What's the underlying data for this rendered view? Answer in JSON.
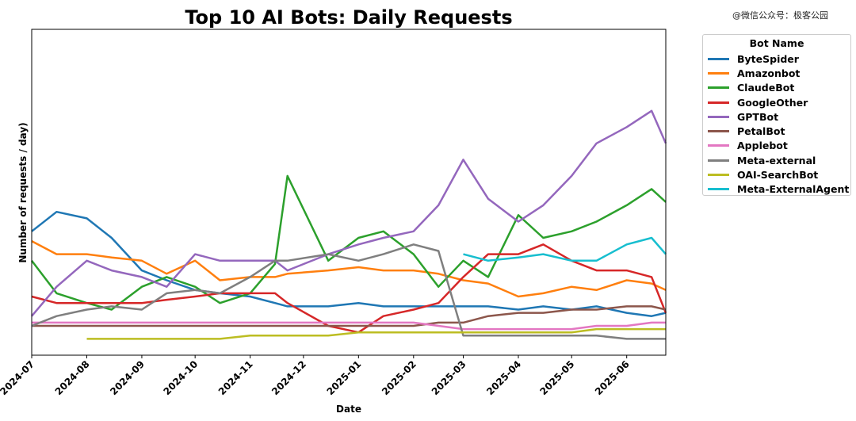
{
  "watermark": "@微信公众号：极客公园",
  "chart_data": {
    "type": "line",
    "title": "Top 10 AI Bots: Daily Requests",
    "xlabel": "Date",
    "ylabel": "Number of requests / day)",
    "xlim": [
      "2024-07-01",
      "2025-06-23"
    ],
    "ylim": [
      0,
      100
    ],
    "y_units": "relative (no y tick labels shown)",
    "grid": false,
    "legend": {
      "title": "Bot Name",
      "placement": "outside-right"
    },
    "x_ticks": [
      "2024-07",
      "2024-08",
      "2024-09",
      "2024-10",
      "2024-11",
      "2024-12",
      "2025-01",
      "2025-02",
      "2025-03",
      "2025-04",
      "2025-05",
      "2025-06"
    ],
    "x": [
      "2024-07-01",
      "2024-07-15",
      "2024-08-01",
      "2024-08-15",
      "2024-09-01",
      "2024-09-15",
      "2024-10-01",
      "2024-10-15",
      "2024-11-01",
      "2024-11-15",
      "2024-11-22",
      "2024-12-15",
      "2025-01-01",
      "2025-01-15",
      "2025-02-01",
      "2025-02-15",
      "2025-03-01",
      "2025-03-15",
      "2025-04-01",
      "2025-04-15",
      "2025-05-01",
      "2025-05-15",
      "2025-06-01",
      "2025-06-15",
      "2025-06-23"
    ],
    "series": [
      {
        "name": "ByteSpider",
        "color": "#1f77b4",
        "values": [
          38,
          44,
          42,
          36,
          26,
          23,
          20,
          19,
          18,
          16,
          15,
          15,
          16,
          15,
          15,
          15,
          15,
          15,
          14,
          15,
          14,
          15,
          13,
          12,
          13
        ]
      },
      {
        "name": "Amazonbot",
        "color": "#ff7f0e",
        "values": [
          35,
          31,
          31,
          30,
          29,
          25,
          29,
          23,
          24,
          24,
          25,
          26,
          27,
          26,
          26,
          25,
          23,
          22,
          18,
          19,
          21,
          20,
          23,
          22,
          20
        ]
      },
      {
        "name": "ClaudeBot",
        "color": "#2ca02c",
        "values": [
          29,
          19,
          16,
          14,
          21,
          24,
          21,
          16,
          19,
          28,
          55,
          29,
          36,
          38,
          31,
          21,
          29,
          24,
          43,
          36,
          38,
          41,
          46,
          51,
          47
        ]
      },
      {
        "name": "GoogleOther",
        "color": "#d62728",
        "values": [
          18,
          16,
          16,
          16,
          16,
          17,
          18,
          19,
          19,
          19,
          16,
          9,
          7,
          12,
          14,
          16,
          24,
          31,
          31,
          34,
          29,
          26,
          26,
          24,
          13
        ]
      },
      {
        "name": "GPTBot",
        "color": "#9467bd",
        "values": [
          12,
          21,
          29,
          26,
          24,
          21,
          31,
          29,
          29,
          29,
          26,
          31,
          34,
          36,
          38,
          46,
          60,
          48,
          41,
          46,
          55,
          65,
          70,
          75,
          65
        ]
      },
      {
        "name": "PetalBot",
        "color": "#8c564b",
        "values": [
          9,
          9,
          9,
          9,
          9,
          9,
          9,
          9,
          9,
          9,
          9,
          9,
          9,
          9,
          9,
          10,
          10,
          12,
          13,
          13,
          14,
          14,
          15,
          15,
          14
        ]
      },
      {
        "name": "Applebot",
        "color": "#e377c2",
        "values": [
          10,
          10,
          10,
          10,
          10,
          10,
          10,
          10,
          10,
          10,
          10,
          10,
          10,
          10,
          10,
          9,
          8,
          8,
          8,
          8,
          8,
          9,
          9,
          10,
          10
        ]
      },
      {
        "name": "Meta-external",
        "color": "#7f7f7f",
        "values": [
          9,
          12,
          14,
          15,
          14,
          19,
          20,
          19,
          24,
          29,
          29,
          31,
          29,
          31,
          34,
          32,
          6,
          6,
          6,
          6,
          6,
          6,
          5,
          5,
          5
        ]
      },
      {
        "name": "OAI-SearchBot",
        "color": "#bcbd22",
        "values": [
          null,
          null,
          5,
          5,
          5,
          5,
          5,
          5,
          6,
          6,
          6,
          6,
          7,
          7,
          7,
          7,
          7,
          7,
          7,
          7,
          7,
          8,
          8,
          8,
          8
        ]
      },
      {
        "name": "Meta-ExternalAgent",
        "color": "#17becf",
        "values": [
          null,
          null,
          null,
          null,
          null,
          null,
          null,
          null,
          null,
          null,
          null,
          null,
          null,
          null,
          null,
          null,
          31,
          29,
          30,
          31,
          29,
          29,
          34,
          36,
          31
        ]
      }
    ]
  }
}
